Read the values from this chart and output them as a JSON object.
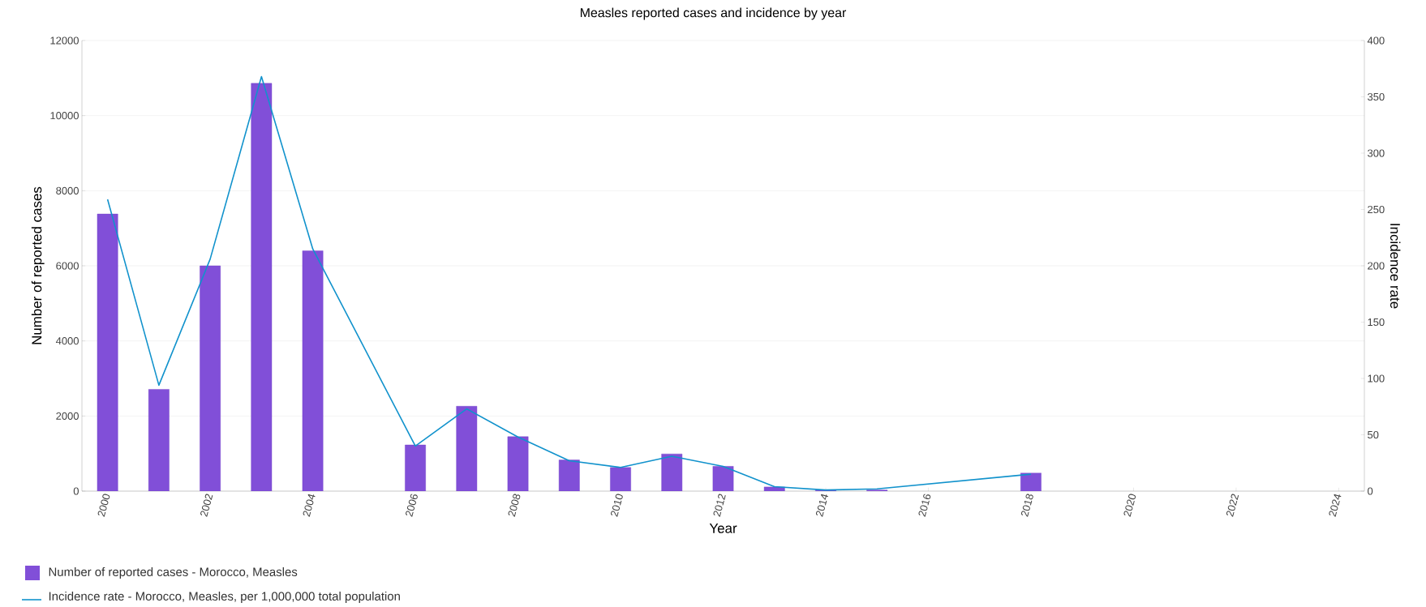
{
  "chart_data": {
    "type": "bar",
    "title": "Measles reported cases and incidence by year",
    "xlabel": "Year",
    "ylabel": "Number of reported cases",
    "y2label": "Incidence rate",
    "x": [
      2000,
      2001,
      2002,
      2003,
      2004,
      2006,
      2007,
      2008,
      2009,
      2010,
      2011,
      2012,
      2013,
      2014,
      2015,
      2018
    ],
    "series": [
      {
        "name": "Number of reported cases - Morocco, Measles",
        "color": "#814fd8",
        "values": [
          7380,
          2710,
          6000,
          10860,
          6400,
          1230,
          2260,
          1450,
          830,
          630,
          990,
          660,
          110,
          30,
          30,
          480
        ]
      },
      {
        "name": "Incidence rate - Morocco, Measles, per 1,000,000 total population",
        "type": "line",
        "axis": "y2",
        "color": "#1192cc",
        "values": [
          259,
          94,
          206,
          368,
          215,
          40,
          73,
          48,
          27,
          21,
          31,
          22,
          4,
          1,
          2,
          15
        ]
      }
    ],
    "xlim": [
      1999.5,
      2024.5
    ],
    "xticks": [
      2000,
      2002,
      2004,
      2006,
      2008,
      2010,
      2012,
      2014,
      2016,
      2018,
      2020,
      2022,
      2024
    ],
    "ylim": [
      0,
      12000
    ],
    "yticks": [
      0,
      2000,
      4000,
      6000,
      8000,
      10000,
      12000
    ],
    "y2lim": [
      0,
      400
    ],
    "y2ticks": [
      0,
      50,
      100,
      150,
      200,
      250,
      300,
      350,
      400
    ],
    "grid": "y",
    "legend": "bottom left",
    "marker": "none",
    "line_style": "solid"
  }
}
